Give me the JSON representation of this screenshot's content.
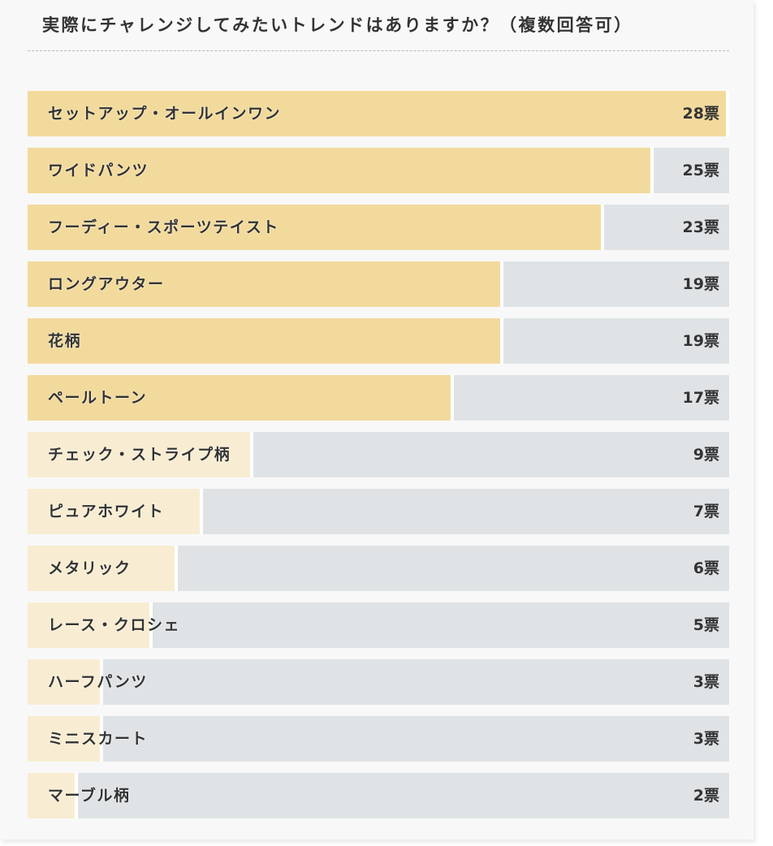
{
  "chart_data": {
    "type": "bar",
    "orientation": "horizontal",
    "title": "実際にチャレンジしてみたいトレンドはありますか？（複数回答可）",
    "unit": "票",
    "max_value": 28,
    "categories": [
      "セットアップ・オールインワン",
      "ワイドパンツ",
      "フーディー・スポーツテイスト",
      "ロングアウター",
      "花柄",
      "ペールトーン",
      "チェック・ストライプ柄",
      "ピュアホワイト",
      "メタリック",
      "レース・クロシェ",
      "ハーフパンツ",
      "ミニスカート",
      "マーブル柄"
    ],
    "values": [
      28,
      25,
      23,
      19,
      19,
      17,
      9,
      7,
      6,
      5,
      3,
      3,
      2
    ],
    "value_labels": [
      "28票",
      "25票",
      "23票",
      "19票",
      "19票",
      "17票",
      "9票",
      "7票",
      "6票",
      "5票",
      "3票",
      "3票",
      "2票"
    ],
    "highlight_threshold": 17,
    "colors": {
      "highlight_bar": "#f2da9c",
      "normal_bar": "#f8edd2",
      "track": "#dfe3e5",
      "text": "#333333"
    }
  }
}
